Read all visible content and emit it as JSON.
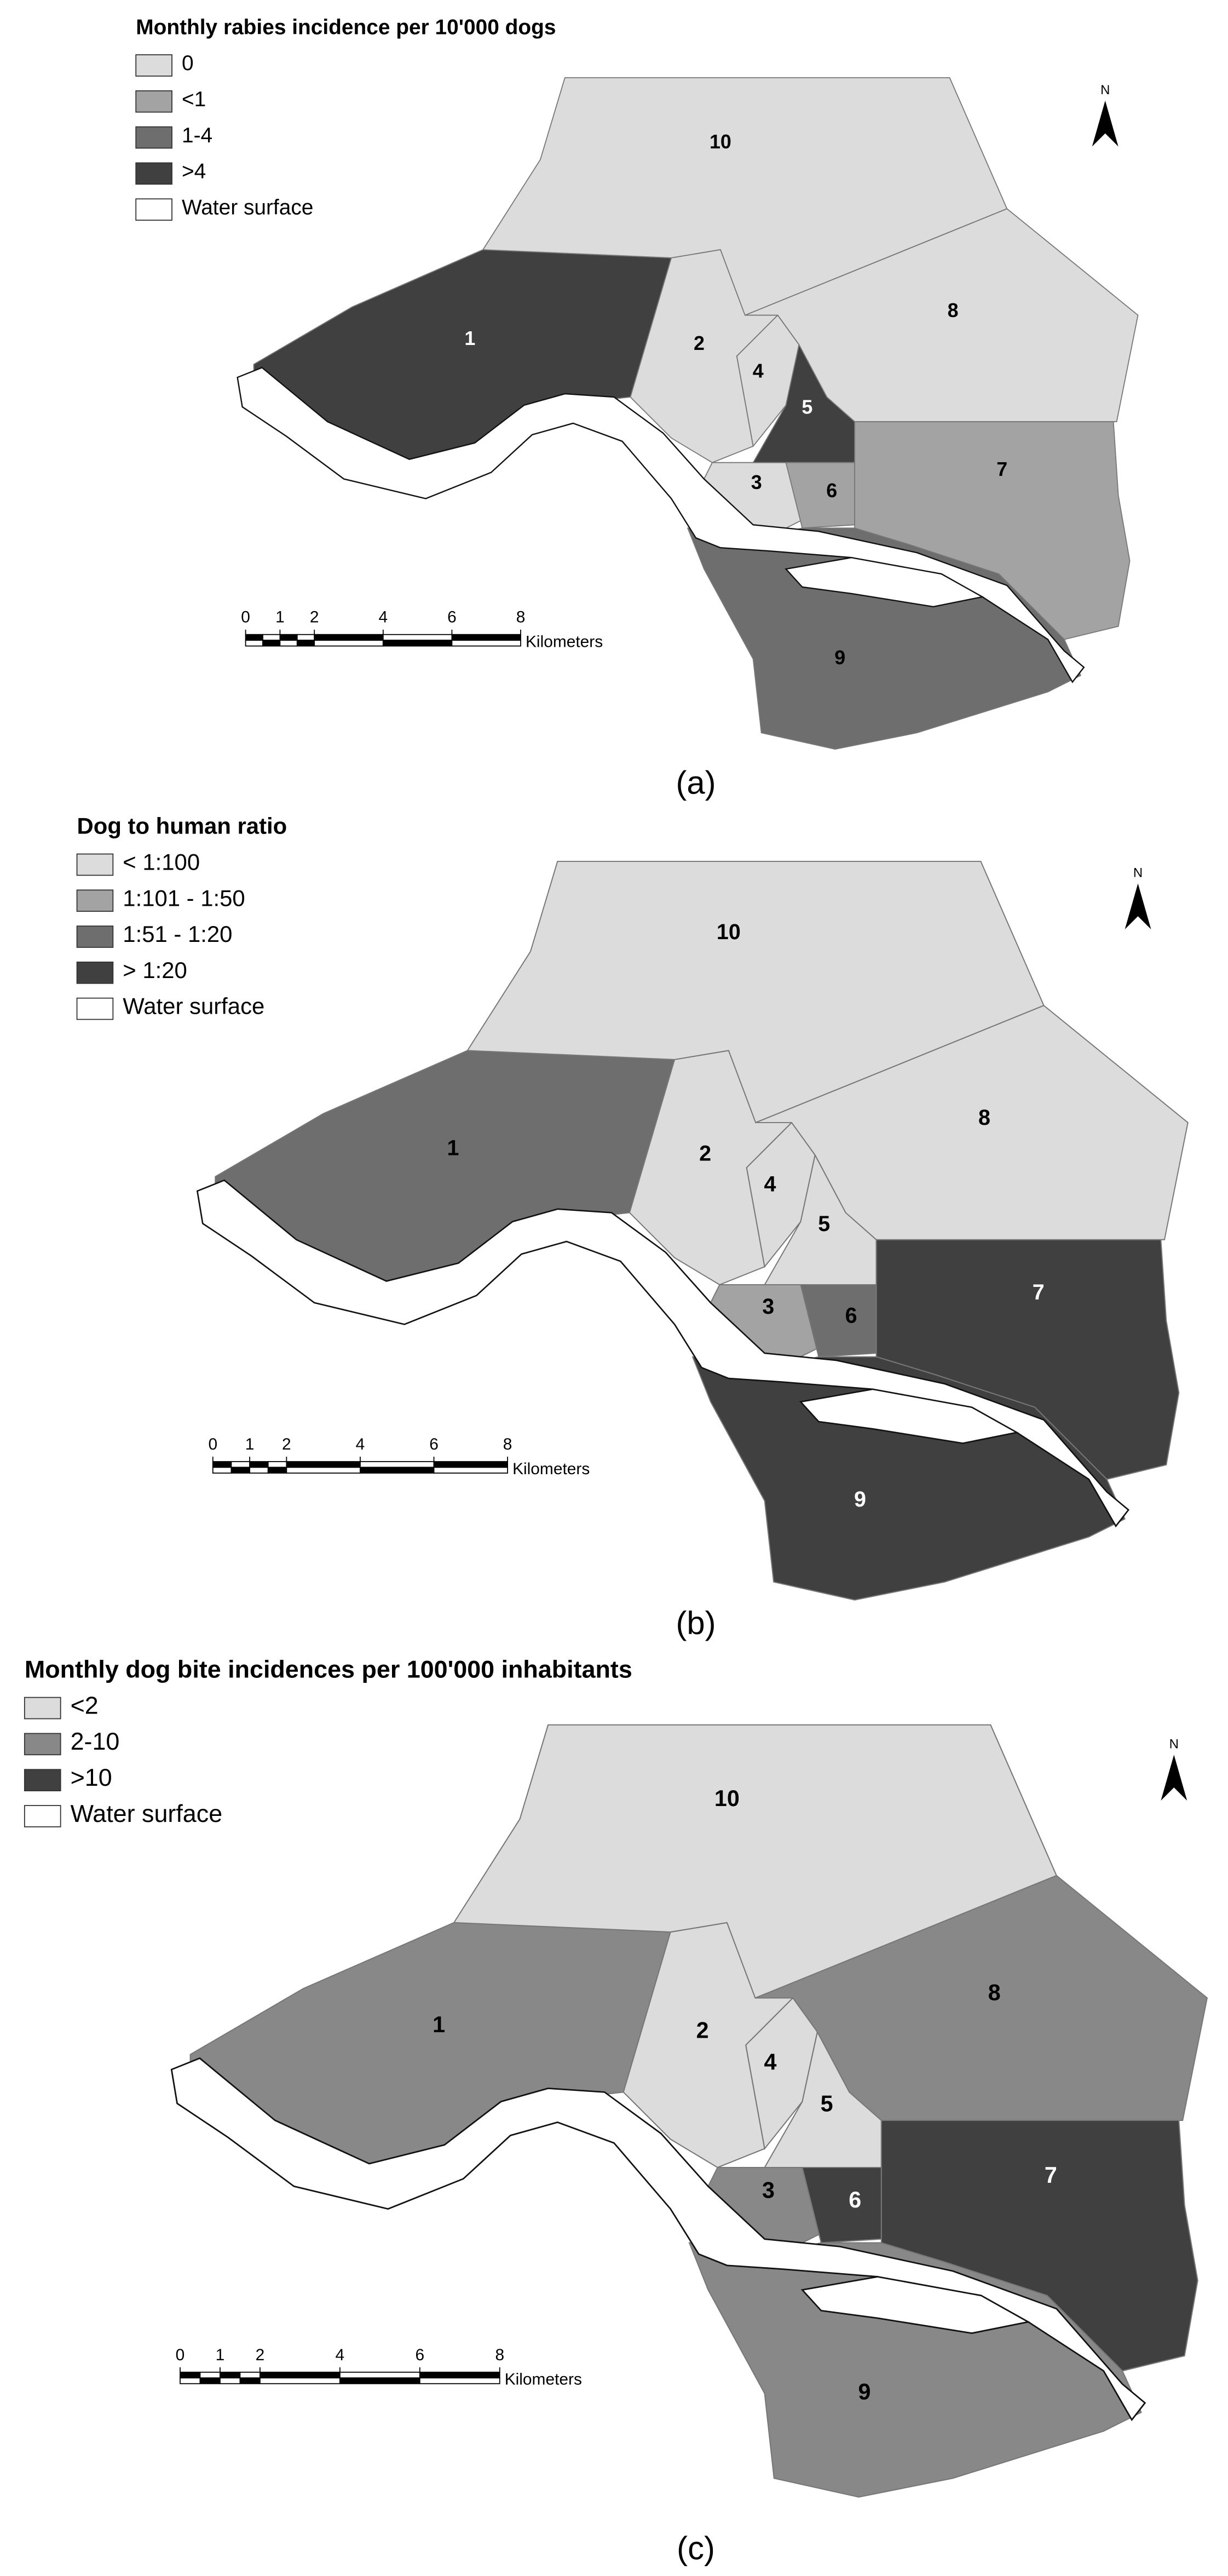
{
  "north": "N",
  "scale": {
    "ticks": [
      0,
      1,
      2,
      4,
      6,
      8
    ],
    "unit": "Kilometers"
  },
  "panels": [
    {
      "label": "(a)",
      "legend": {
        "title": "Monthly rabies incidence per 10'000 dogs",
        "items": [
          {
            "label": "0",
            "color": "#dcdcdc"
          },
          {
            "label": "<1",
            "color": "#a3a3a3"
          },
          {
            "label": "1-4",
            "color": "#6e6e6e"
          },
          {
            "label": ">4",
            "color": "#404040"
          },
          {
            "label": "Water surface",
            "color": "#ffffff"
          }
        ]
      },
      "districts": [
        {
          "label": "1",
          "color": "#404040"
        },
        {
          "label": "2",
          "color": "#dcdcdc"
        },
        {
          "label": "3",
          "color": "#dcdcdc"
        },
        {
          "label": "4",
          "color": "#dcdcdc"
        },
        {
          "label": "5",
          "color": "#404040"
        },
        {
          "label": "6",
          "color": "#a3a3a3"
        },
        {
          "label": "7",
          "color": "#a3a3a3"
        },
        {
          "label": "8",
          "color": "#dcdcdc"
        },
        {
          "label": "9",
          "color": "#6e6e6e"
        },
        {
          "label": "10",
          "color": "#dcdcdc"
        }
      ]
    },
    {
      "label": "(b)",
      "legend": {
        "title": "Dog to human ratio",
        "items": [
          {
            "label": "< 1:100",
            "color": "#dcdcdc"
          },
          {
            "label": "1:101 - 1:50",
            "color": "#a3a3a3"
          },
          {
            "label": "1:51 - 1:20",
            "color": "#6e6e6e"
          },
          {
            "label": "> 1:20",
            "color": "#404040"
          },
          {
            "label": "Water surface",
            "color": "#ffffff"
          }
        ]
      },
      "districts": [
        {
          "label": "1",
          "color": "#6e6e6e"
        },
        {
          "label": "2",
          "color": "#dcdcdc"
        },
        {
          "label": "3",
          "color": "#a3a3a3"
        },
        {
          "label": "4",
          "color": "#dcdcdc"
        },
        {
          "label": "5",
          "color": "#dcdcdc"
        },
        {
          "label": "6",
          "color": "#6e6e6e"
        },
        {
          "label": "7",
          "color": "#404040"
        },
        {
          "label": "8",
          "color": "#dcdcdc"
        },
        {
          "label": "9",
          "color": "#404040"
        },
        {
          "label": "10",
          "color": "#dcdcdc"
        }
      ]
    },
    {
      "label": "(c)",
      "legend": {
        "title": "Monthly dog bite incidences per 100'000 inhabitants",
        "items": [
          {
            "label": "<2",
            "color": "#dcdcdc"
          },
          {
            "label": "2-10",
            "color": "#888888"
          },
          {
            "label": ">10",
            "color": "#404040"
          },
          {
            "label": "Water surface",
            "color": "#ffffff"
          }
        ]
      },
      "districts": [
        {
          "label": "1",
          "color": "#888888"
        },
        {
          "label": "2",
          "color": "#dcdcdc"
        },
        {
          "label": "3",
          "color": "#888888"
        },
        {
          "label": "4",
          "color": "#dcdcdc"
        },
        {
          "label": "5",
          "color": "#dcdcdc"
        },
        {
          "label": "6",
          "color": "#404040"
        },
        {
          "label": "7",
          "color": "#404040"
        },
        {
          "label": "8",
          "color": "#888888"
        },
        {
          "label": "9",
          "color": "#888888"
        },
        {
          "label": "10",
          "color": "#dcdcdc"
        }
      ]
    }
  ]
}
